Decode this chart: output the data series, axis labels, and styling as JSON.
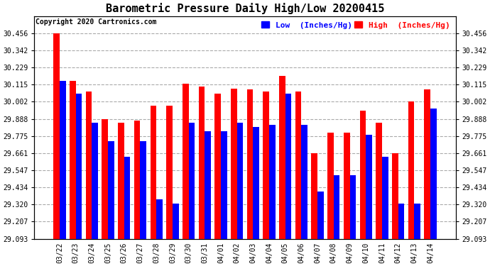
{
  "title": "Barometric Pressure Daily High/Low 20200415",
  "copyright": "Copyright 2020 Cartronics.com",
  "legend_low": "Low  (Inches/Hg)",
  "legend_high": "High  (Inches/Hg)",
  "categories": [
    "03/22",
    "03/23",
    "03/24",
    "03/25",
    "03/26",
    "03/27",
    "03/28",
    "03/29",
    "03/30",
    "03/31",
    "04/01",
    "04/02",
    "04/03",
    "04/04",
    "04/05",
    "04/06",
    "04/07",
    "04/08",
    "04/09",
    "04/10",
    "04/11",
    "04/12",
    "04/13",
    "04/14"
  ],
  "high_values": [
    30.456,
    30.142,
    30.069,
    29.888,
    29.862,
    29.875,
    29.975,
    29.975,
    30.122,
    30.102,
    30.055,
    30.089,
    30.082,
    30.069,
    30.175,
    30.069,
    29.662,
    29.795,
    29.795,
    29.942,
    29.862,
    29.662,
    30.002,
    30.082
  ],
  "low_values": [
    30.142,
    30.055,
    29.862,
    29.742,
    29.635,
    29.742,
    29.355,
    29.328,
    29.862,
    29.808,
    29.808,
    29.862,
    29.835,
    29.848,
    30.055,
    29.848,
    29.408,
    29.515,
    29.515,
    29.782,
    29.635,
    29.328,
    29.328,
    29.955
  ],
  "ylim_min": 29.093,
  "ylim_max": 30.57,
  "yticks": [
    29.093,
    29.207,
    29.32,
    29.434,
    29.547,
    29.661,
    29.775,
    29.888,
    30.002,
    30.115,
    30.229,
    30.342,
    30.456
  ],
  "bar_width": 0.38,
  "high_color": "#ff0000",
  "low_color": "#0000ff",
  "bg_color": "#ffffff",
  "grid_color": "#aaaaaa",
  "title_fontsize": 11,
  "tick_fontsize": 7,
  "legend_fontsize": 8
}
